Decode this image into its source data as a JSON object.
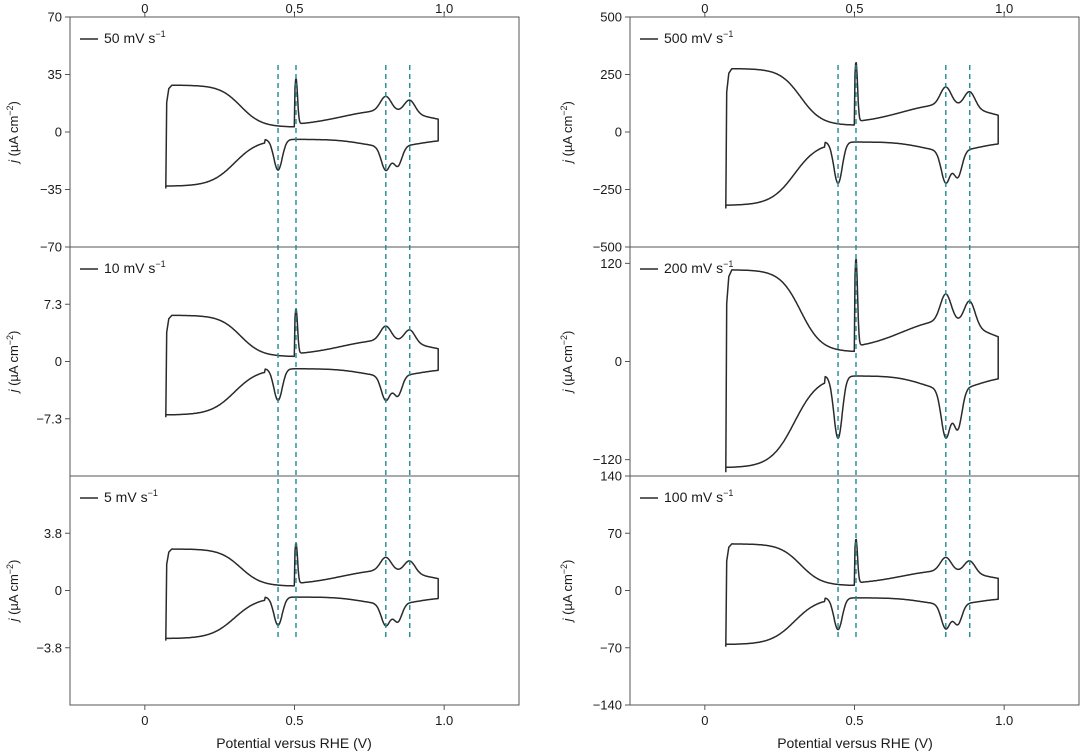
{
  "figure": {
    "xlabel": "Potential versus RHE (V)",
    "xticks": [
      0,
      0.5,
      1.0
    ],
    "xtick_labels": [
      "0",
      "0.5",
      "1.0"
    ],
    "xlim": [
      -0.25,
      1.25
    ],
    "ylabel_main": "j",
    "ylabel_units": "(µA cm",
    "ylabel_sup": "−2",
    "ylabel_close": ")",
    "legend_unit": "mV s",
    "legend_sup": "−1",
    "guide_color": "#1f8a96",
    "curve_color": "#2a2a2a",
    "guide_potentials": [
      0.445,
      0.505,
      0.805,
      0.885
    ]
  },
  "chart_data": [
    {
      "type": "line",
      "column": "left",
      "row": 0,
      "title": "50 mV s−1",
      "legend_value": "50",
      "ylim": [
        -70,
        70
      ],
      "yticks": [
        70,
        35,
        0,
        -35,
        -70
      ],
      "ytick_labels": [
        "70",
        "35",
        "0",
        "−35",
        "−70"
      ],
      "curve_params": {
        "dl": 30,
        "hupd": 28,
        "pt": 16,
        "ox": 10,
        "red": 26,
        "spike": "sharp"
      }
    },
    {
      "type": "line",
      "column": "left",
      "row": 1,
      "title": "10 mV s−1",
      "legend_value": "10",
      "ylim": [
        -14.6,
        14.6
      ],
      "yticks": [
        7.3,
        0,
        -7.3
      ],
      "ytick_labels": [
        "7.3",
        "0",
        "−7.3"
      ],
      "curve_params": {
        "dl": 6.2,
        "hupd": 5.8,
        "pt": 3.3,
        "ox": 2.1,
        "red": 5.6,
        "spike": "sharp"
      }
    },
    {
      "type": "line",
      "column": "left",
      "row": 2,
      "title": "5 mV s−1",
      "legend_value": "5",
      "ylim": [
        -7.6,
        7.6
      ],
      "yticks": [
        3.8,
        0,
        -3.8
      ],
      "ytick_labels": [
        "3.8",
        "0",
        "−3.8"
      ],
      "curve_params": {
        "dl": 2.9,
        "hupd": 2.7,
        "pt": 1.6,
        "ox": 1.05,
        "red": 2.6,
        "spike": "sharp"
      }
    },
    {
      "type": "line",
      "column": "right",
      "row": 0,
      "title": "500 mV s−1",
      "legend_value": "500",
      "ylim": [
        -500,
        500
      ],
      "yticks": [
        500,
        250,
        0,
        -250,
        -500
      ],
      "ytick_labels": [
        "500",
        "250",
        "0",
        "−250",
        "−500"
      ],
      "curve_params": {
        "dl": 290,
        "hupd": 260,
        "pt": 140,
        "ox": 90,
        "red": 250,
        "spike": "sharp"
      }
    },
    {
      "type": "line",
      "column": "right",
      "row": 1,
      "title": "200 mV s−1",
      "legend_value": "200",
      "ylim": [
        -140,
        140
      ],
      "yticks": [
        120,
        0,
        -120
      ],
      "ytick_labels": [
        "120",
        "0",
        "−120"
      ],
      "curve_params": {
        "dl": 118,
        "hupd": 108,
        "pt": 60,
        "ox": 38,
        "red": 106,
        "spike": "sharp"
      }
    },
    {
      "type": "line",
      "column": "right",
      "row": 2,
      "title": "100 mV s−1",
      "legend_value": "100",
      "ylim": [
        -140,
        140
      ],
      "yticks": [
        140,
        70,
        0,
        -70,
        -140
      ],
      "ytick_labels": [
        "140",
        "70",
        "0",
        "−70",
        "−140"
      ],
      "curve_params": {
        "dl": 60,
        "hupd": 54,
        "pt": 30,
        "ox": 18,
        "red": 54,
        "spike": "sharp"
      }
    }
  ]
}
